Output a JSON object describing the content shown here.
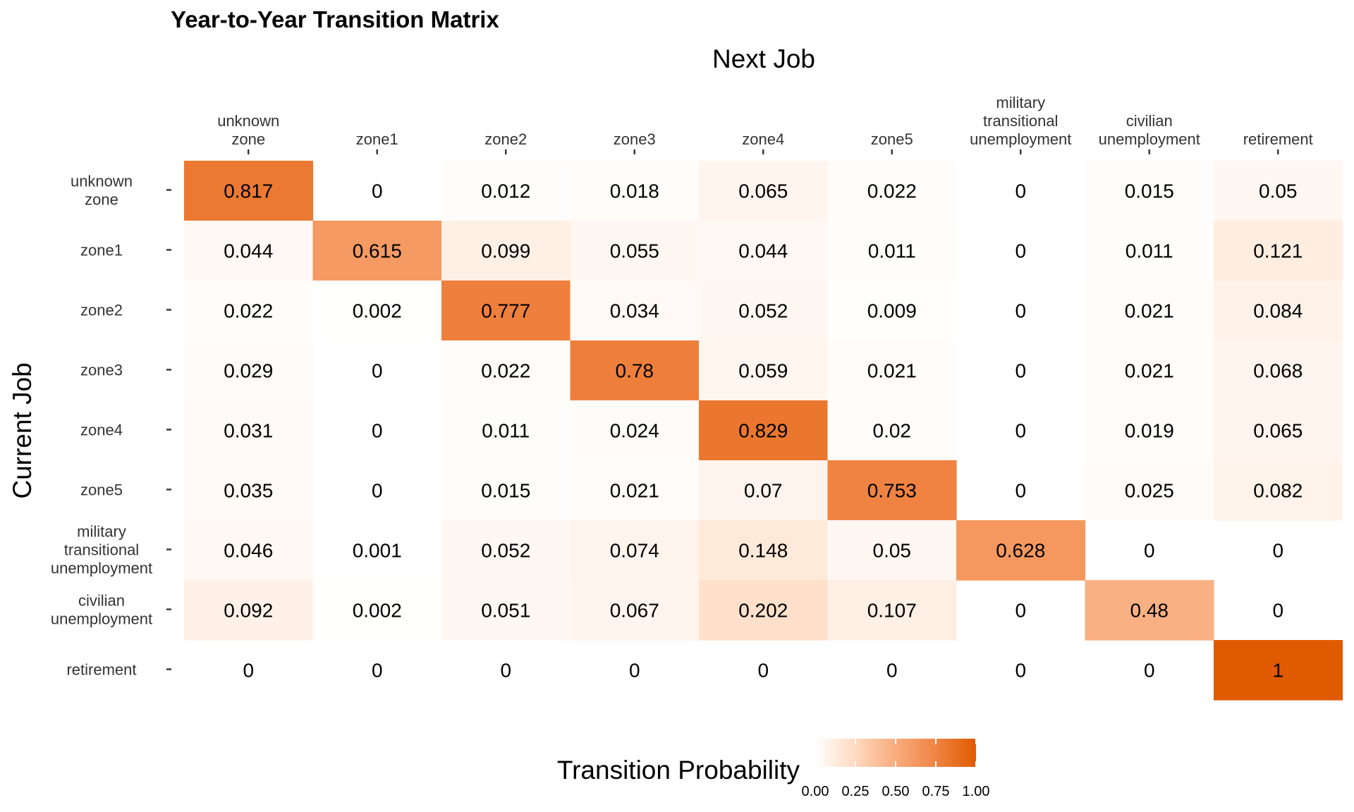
{
  "chart_data": {
    "type": "heatmap",
    "title": "Year-to-Year Transition Matrix",
    "xlabel": "Next Job",
    "ylabel": "Current Job",
    "x_categories": [
      [
        "unknown",
        "zone"
      ],
      [
        "zone1"
      ],
      [
        "zone2"
      ],
      [
        "zone3"
      ],
      [
        "zone4"
      ],
      [
        "zone5"
      ],
      [
        "military",
        "transitional",
        "unemployment"
      ],
      [
        "civilian",
        "unemployment"
      ],
      [
        "retirement"
      ]
    ],
    "y_categories": [
      [
        "unknown",
        "zone"
      ],
      [
        "zone1"
      ],
      [
        "zone2"
      ],
      [
        "zone3"
      ],
      [
        "zone4"
      ],
      [
        "zone5"
      ],
      [
        "military",
        "transitional",
        "unemployment"
      ],
      [
        "civilian",
        "unemployment"
      ],
      [
        "retirement"
      ]
    ],
    "values": [
      [
        "0.817",
        "0",
        "0.012",
        "0.018",
        "0.065",
        "0.022",
        "0",
        "0.015",
        "0.05"
      ],
      [
        "0.044",
        "0.615",
        "0.099",
        "0.055",
        "0.044",
        "0.011",
        "0",
        "0.011",
        "0.121"
      ],
      [
        "0.022",
        "0.002",
        "0.777",
        "0.034",
        "0.052",
        "0.009",
        "0",
        "0.021",
        "0.084"
      ],
      [
        "0.029",
        "0",
        "0.022",
        "0.78",
        "0.059",
        "0.021",
        "0",
        "0.021",
        "0.068"
      ],
      [
        "0.031",
        "0",
        "0.011",
        "0.024",
        "0.829",
        "0.02",
        "0",
        "0.019",
        "0.065"
      ],
      [
        "0.035",
        "0",
        "0.015",
        "0.021",
        "0.07",
        "0.753",
        "0",
        "0.025",
        "0.082"
      ],
      [
        "0.046",
        "0.001",
        "0.052",
        "0.074",
        "0.148",
        "0.05",
        "0.628",
        "0",
        "0"
      ],
      [
        "0.092",
        "0.002",
        "0.051",
        "0.067",
        "0.202",
        "0.107",
        "0",
        "0.48",
        "0"
      ],
      [
        "0",
        "0",
        "0",
        "0",
        "0",
        "0",
        "0",
        "0",
        "1"
      ]
    ],
    "colorscale": {
      "low": "#ffffff",
      "high": "#e05a00",
      "zero_cells": "blank"
    },
    "legend": {
      "title": "Transition Probability",
      "position": "bottom",
      "ticks": [
        "0.00",
        "0.25",
        "0.50",
        "0.75",
        "1.00"
      ]
    },
    "grid": false
  }
}
